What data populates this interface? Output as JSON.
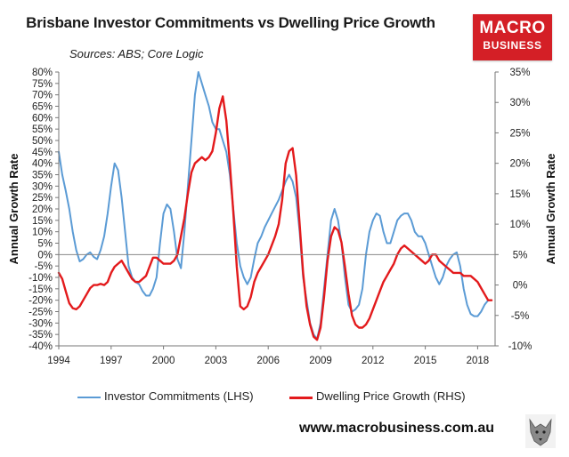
{
  "title": "Brisbane Investor Commitments vs Dwelling Price Growth",
  "subtitle": "Sources: ABS; Core Logic",
  "brand": {
    "line1": "MACRO",
    "line2": "BUSINESS",
    "color": "#d41f26"
  },
  "website": "www.macrobusiness.com.au",
  "chart_data": {
    "type": "line",
    "ylabel_left": "Annual Growth Rate",
    "ylabel_right": "Annual Growth Rate",
    "left_axis": {
      "min": -40,
      "max": 80,
      "step": 5,
      "ticks": [
        "-40%",
        "-35%",
        "-30%",
        "-25%",
        "-20%",
        "-15%",
        "-10%",
        "-5%",
        "0%",
        "5%",
        "10%",
        "15%",
        "20%",
        "25%",
        "30%",
        "35%",
        "40%",
        "45%",
        "50%",
        "55%",
        "60%",
        "65%",
        "70%",
        "75%",
        "80%"
      ]
    },
    "right_axis": {
      "min": -10,
      "max": 35,
      "step": 5,
      "ticks": [
        "-10%",
        "-5%",
        "0%",
        "5%",
        "10%",
        "15%",
        "20%",
        "25%",
        "30%",
        "35%"
      ]
    },
    "x_axis": {
      "min": 1994,
      "max": 2019,
      "ticks": [
        "1994",
        "1997",
        "2000",
        "2003",
        "2006",
        "2009",
        "2012",
        "2015",
        "2018"
      ]
    },
    "grid": false,
    "legend_position": "bottom",
    "series": [
      {
        "name": "Investor Commitments (LHS)",
        "axis": "left",
        "color": "#5b9bd5",
        "points": [
          [
            1994.0,
            45
          ],
          [
            1994.2,
            35
          ],
          [
            1994.4,
            28
          ],
          [
            1994.6,
            20
          ],
          [
            1994.8,
            10
          ],
          [
            1995.0,
            2
          ],
          [
            1995.2,
            -3
          ],
          [
            1995.4,
            -2
          ],
          [
            1995.6,
            0
          ],
          [
            1995.8,
            1
          ],
          [
            1996.0,
            -1
          ],
          [
            1996.2,
            -2
          ],
          [
            1996.4,
            2
          ],
          [
            1996.6,
            8
          ],
          [
            1996.8,
            18
          ],
          [
            1997.0,
            30
          ],
          [
            1997.2,
            40
          ],
          [
            1997.4,
            37
          ],
          [
            1997.6,
            25
          ],
          [
            1997.8,
            10
          ],
          [
            1998.0,
            -5
          ],
          [
            1998.2,
            -10
          ],
          [
            1998.4,
            -12
          ],
          [
            1998.6,
            -13
          ],
          [
            1998.8,
            -16
          ],
          [
            1999.0,
            -18
          ],
          [
            1999.2,
            -18
          ],
          [
            1999.4,
            -15
          ],
          [
            1999.6,
            -10
          ],
          [
            1999.8,
            5
          ],
          [
            2000.0,
            18
          ],
          [
            2000.2,
            22
          ],
          [
            2000.4,
            20
          ],
          [
            2000.6,
            10
          ],
          [
            2000.8,
            -2
          ],
          [
            2001.0,
            -6
          ],
          [
            2001.2,
            10
          ],
          [
            2001.4,
            30
          ],
          [
            2001.6,
            50
          ],
          [
            2001.8,
            70
          ],
          [
            2002.0,
            80
          ],
          [
            2002.2,
            75
          ],
          [
            2002.4,
            70
          ],
          [
            2002.6,
            65
          ],
          [
            2002.8,
            58
          ],
          [
            2003.0,
            55
          ],
          [
            2003.2,
            55
          ],
          [
            2003.4,
            50
          ],
          [
            2003.6,
            45
          ],
          [
            2003.8,
            35
          ],
          [
            2004.0,
            20
          ],
          [
            2004.2,
            5
          ],
          [
            2004.4,
            -5
          ],
          [
            2004.6,
            -10
          ],
          [
            2004.8,
            -13
          ],
          [
            2005.0,
            -10
          ],
          [
            2005.2,
            -2
          ],
          [
            2005.4,
            5
          ],
          [
            2005.6,
            8
          ],
          [
            2005.8,
            12
          ],
          [
            2006.0,
            15
          ],
          [
            2006.2,
            18
          ],
          [
            2006.4,
            21
          ],
          [
            2006.6,
            24
          ],
          [
            2006.8,
            28
          ],
          [
            2007.0,
            32
          ],
          [
            2007.2,
            35
          ],
          [
            2007.4,
            32
          ],
          [
            2007.6,
            25
          ],
          [
            2007.8,
            10
          ],
          [
            2008.0,
            -10
          ],
          [
            2008.2,
            -20
          ],
          [
            2008.4,
            -30
          ],
          [
            2008.6,
            -35
          ],
          [
            2008.8,
            -37
          ],
          [
            2009.0,
            -30
          ],
          [
            2009.2,
            -15
          ],
          [
            2009.4,
            0
          ],
          [
            2009.6,
            15
          ],
          [
            2009.8,
            20
          ],
          [
            2010.0,
            15
          ],
          [
            2010.2,
            5
          ],
          [
            2010.4,
            -10
          ],
          [
            2010.6,
            -22
          ],
          [
            2010.8,
            -25
          ],
          [
            2011.0,
            -24
          ],
          [
            2011.2,
            -22
          ],
          [
            2011.4,
            -15
          ],
          [
            2011.6,
            0
          ],
          [
            2011.8,
            10
          ],
          [
            2012.0,
            15
          ],
          [
            2012.2,
            18
          ],
          [
            2012.4,
            17
          ],
          [
            2012.6,
            10
          ],
          [
            2012.8,
            5
          ],
          [
            2013.0,
            5
          ],
          [
            2013.2,
            10
          ],
          [
            2013.4,
            15
          ],
          [
            2013.6,
            17
          ],
          [
            2013.8,
            18
          ],
          [
            2014.0,
            18
          ],
          [
            2014.2,
            15
          ],
          [
            2014.4,
            10
          ],
          [
            2014.6,
            8
          ],
          [
            2014.8,
            8
          ],
          [
            2015.0,
            5
          ],
          [
            2015.2,
            0
          ],
          [
            2015.4,
            -5
          ],
          [
            2015.6,
            -10
          ],
          [
            2015.8,
            -13
          ],
          [
            2016.0,
            -10
          ],
          [
            2016.2,
            -5
          ],
          [
            2016.4,
            -2
          ],
          [
            2016.6,
            0
          ],
          [
            2016.8,
            1
          ],
          [
            2017.0,
            -5
          ],
          [
            2017.2,
            -15
          ],
          [
            2017.4,
            -22
          ],
          [
            2017.6,
            -26
          ],
          [
            2017.8,
            -27
          ],
          [
            2018.0,
            -27
          ],
          [
            2018.2,
            -25
          ],
          [
            2018.4,
            -22
          ],
          [
            2018.6,
            -20
          ]
        ]
      },
      {
        "name": "Dwelling Price Growth (RHS)",
        "axis": "right",
        "color": "#e31a1c",
        "points": [
          [
            1994.0,
            2.0
          ],
          [
            1994.2,
            1.0
          ],
          [
            1994.4,
            -1.0
          ],
          [
            1994.6,
            -3.0
          ],
          [
            1994.8,
            -3.8
          ],
          [
            1995.0,
            -4.0
          ],
          [
            1995.2,
            -3.5
          ],
          [
            1995.4,
            -2.5
          ],
          [
            1995.6,
            -1.5
          ],
          [
            1995.8,
            -0.5
          ],
          [
            1996.0,
            0.0
          ],
          [
            1996.2,
            0.0
          ],
          [
            1996.4,
            0.2
          ],
          [
            1996.6,
            0.0
          ],
          [
            1996.8,
            0.5
          ],
          [
            1997.0,
            2.0
          ],
          [
            1997.2,
            3.0
          ],
          [
            1997.4,
            3.5
          ],
          [
            1997.6,
            4.0
          ],
          [
            1997.8,
            3.0
          ],
          [
            1998.0,
            2.0
          ],
          [
            1998.2,
            1.0
          ],
          [
            1998.4,
            0.5
          ],
          [
            1998.6,
            0.5
          ],
          [
            1998.8,
            1.0
          ],
          [
            1999.0,
            1.5
          ],
          [
            1999.2,
            3.0
          ],
          [
            1999.4,
            4.5
          ],
          [
            1999.6,
            4.5
          ],
          [
            1999.8,
            4.0
          ],
          [
            2000.0,
            3.5
          ],
          [
            2000.2,
            3.5
          ],
          [
            2000.4,
            3.5
          ],
          [
            2000.6,
            4.0
          ],
          [
            2000.8,
            5.0
          ],
          [
            2001.0,
            8.0
          ],
          [
            2001.2,
            11.0
          ],
          [
            2001.4,
            15.0
          ],
          [
            2001.6,
            18.5
          ],
          [
            2001.8,
            20.0
          ],
          [
            2002.0,
            20.5
          ],
          [
            2002.2,
            21.0
          ],
          [
            2002.4,
            20.5
          ],
          [
            2002.6,
            21.0
          ],
          [
            2002.8,
            22.0
          ],
          [
            2003.0,
            25.0
          ],
          [
            2003.2,
            29.0
          ],
          [
            2003.4,
            31.0
          ],
          [
            2003.6,
            27.0
          ],
          [
            2003.8,
            20.0
          ],
          [
            2004.0,
            12.0
          ],
          [
            2004.2,
            3.0
          ],
          [
            2004.4,
            -3.5
          ],
          [
            2004.6,
            -4.0
          ],
          [
            2004.8,
            -3.5
          ],
          [
            2005.0,
            -2.0
          ],
          [
            2005.2,
            0.5
          ],
          [
            2005.4,
            2.0
          ],
          [
            2005.6,
            3.0
          ],
          [
            2005.8,
            4.0
          ],
          [
            2006.0,
            5.0
          ],
          [
            2006.2,
            6.5
          ],
          [
            2006.4,
            8.0
          ],
          [
            2006.6,
            10.0
          ],
          [
            2006.8,
            14.0
          ],
          [
            2007.0,
            20.0
          ],
          [
            2007.2,
            22.0
          ],
          [
            2007.4,
            22.5
          ],
          [
            2007.6,
            18.0
          ],
          [
            2007.8,
            10.0
          ],
          [
            2008.0,
            2.0
          ],
          [
            2008.2,
            -3.5
          ],
          [
            2008.4,
            -6.5
          ],
          [
            2008.6,
            -8.5
          ],
          [
            2008.8,
            -9.0
          ],
          [
            2009.0,
            -7.0
          ],
          [
            2009.2,
            -2.0
          ],
          [
            2009.4,
            4.0
          ],
          [
            2009.6,
            8.0
          ],
          [
            2009.8,
            9.5
          ],
          [
            2010.0,
            9.0
          ],
          [
            2010.2,
            7.0
          ],
          [
            2010.4,
            3.0
          ],
          [
            2010.6,
            -1.5
          ],
          [
            2010.8,
            -5.0
          ],
          [
            2011.0,
            -6.5
          ],
          [
            2011.2,
            -7.0
          ],
          [
            2011.4,
            -7.0
          ],
          [
            2011.6,
            -6.5
          ],
          [
            2011.8,
            -5.5
          ],
          [
            2012.0,
            -4.0
          ],
          [
            2012.2,
            -2.5
          ],
          [
            2012.4,
            -1.0
          ],
          [
            2012.6,
            0.5
          ],
          [
            2012.8,
            1.5
          ],
          [
            2013.0,
            2.5
          ],
          [
            2013.2,
            3.5
          ],
          [
            2013.4,
            5.0
          ],
          [
            2013.6,
            6.0
          ],
          [
            2013.8,
            6.5
          ],
          [
            2014.0,
            6.0
          ],
          [
            2014.2,
            5.5
          ],
          [
            2014.4,
            5.0
          ],
          [
            2014.6,
            4.5
          ],
          [
            2014.8,
            4.0
          ],
          [
            2015.0,
            3.5
          ],
          [
            2015.2,
            4.0
          ],
          [
            2015.4,
            5.0
          ],
          [
            2015.6,
            5.0
          ],
          [
            2015.8,
            4.0
          ],
          [
            2016.0,
            3.5
          ],
          [
            2016.2,
            3.0
          ],
          [
            2016.4,
            2.5
          ],
          [
            2016.6,
            2.0
          ],
          [
            2016.8,
            2.0
          ],
          [
            2017.0,
            2.0
          ],
          [
            2017.2,
            1.5
          ],
          [
            2017.4,
            1.5
          ],
          [
            2017.6,
            1.5
          ],
          [
            2017.8,
            1.0
          ],
          [
            2018.0,
            0.5
          ],
          [
            2018.2,
            -0.5
          ],
          [
            2018.4,
            -1.5
          ],
          [
            2018.6,
            -2.5
          ],
          [
            2018.8,
            -2.5
          ]
        ]
      }
    ]
  }
}
